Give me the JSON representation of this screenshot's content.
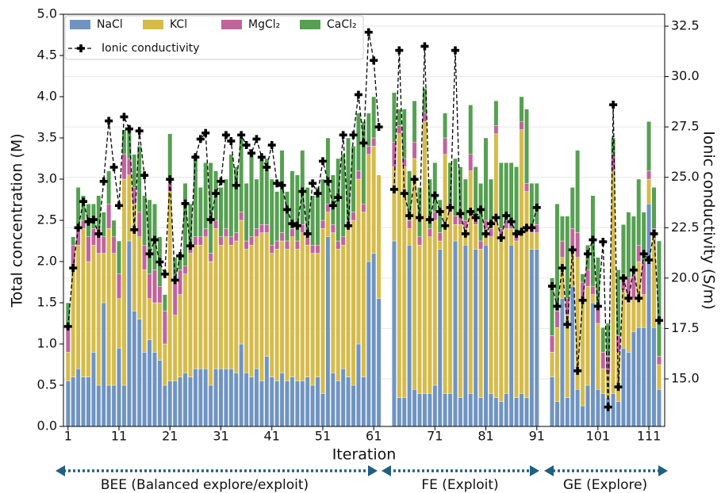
{
  "chart_data": {
    "type": "bar",
    "stacked": true,
    "x_label": "Iteration",
    "y_label": "Total concentration (M)",
    "y2_label": "Ionic conductivity (S/m)",
    "categories": [
      "1",
      null,
      null,
      null,
      null,
      null,
      null,
      null,
      null,
      null,
      "11",
      null,
      null,
      null,
      null,
      null,
      null,
      null,
      null,
      null,
      "21",
      null,
      null,
      null,
      null,
      null,
      null,
      null,
      null,
      null,
      "31",
      null,
      null,
      null,
      null,
      null,
      null,
      null,
      null,
      null,
      "41",
      null,
      null,
      null,
      null,
      null,
      null,
      null,
      null,
      null,
      "51",
      null,
      null,
      null,
      null,
      null,
      null,
      null,
      null,
      null,
      "61",
      null,
      null,
      null,
      null,
      null,
      null,
      null,
      null,
      null,
      null,
      null,
      "71",
      null,
      null,
      null,
      null,
      null,
      null,
      null,
      null,
      null,
      "81",
      null,
      null,
      null,
      null,
      null,
      null,
      null,
      null,
      null,
      "91",
      null,
      null,
      null,
      null,
      null,
      null,
      null,
      null,
      null,
      null,
      null,
      "101",
      null,
      null,
      null,
      null,
      null,
      null,
      null,
      null,
      null,
      "111",
      null,
      null
    ],
    "ylim": [
      0,
      5
    ],
    "yticks": [
      {
        "value": 0,
        "label": "0.0"
      },
      0.5,
      {
        "value": 1,
        "label": "1.0"
      },
      1.5,
      {
        "value": 2,
        "label": "2.0"
      },
      2.5,
      {
        "value": 3,
        "label": "3.0"
      },
      3.5,
      {
        "value": 4,
        "label": "4.0"
      },
      4.5,
      {
        "value": 5,
        "label": "5.0"
      }
    ],
    "y2lim": [
      12.64,
      33.09
    ],
    "y2ticks": [
      {
        "value": 15,
        "label": "15.0"
      },
      17.5,
      {
        "value": 20,
        "label": "20.0"
      },
      22.5,
      {
        "value": 25,
        "label": "25.0"
      },
      27.5,
      {
        "value": 30,
        "label": "30.0"
      },
      32.5
    ],
    "grid": true,
    "legend": "upper left",
    "series": [
      {
        "name": "NaCl",
        "color": "#6f94c2",
        "values": [
          0.55,
          0.6,
          0.7,
          0.6,
          0.6,
          0.9,
          0.5,
          1.5,
          0.5,
          0.5,
          0.95,
          0.5,
          2.25,
          1.4,
          1.3,
          0.9,
          1.05,
          0.9,
          0.8,
          0.5,
          0.55,
          0.55,
          0.6,
          0.65,
          0.6,
          0.7,
          0.7,
          0.7,
          0.5,
          0.7,
          0.7,
          0.7,
          0.7,
          0.65,
          1.0,
          0.65,
          0.6,
          0.7,
          0.55,
          0.85,
          0.6,
          0.55,
          0.65,
          0.55,
          0.6,
          0.55,
          0.55,
          0.6,
          0.5,
          0.6,
          0.4,
          2.3,
          0.65,
          0.55,
          0.7,
          0.6,
          0.5,
          1.0,
          0.6,
          2.0,
          2.1,
          1.55,
          null,
          null,
          2.25,
          0.35,
          0.35,
          2.2,
          0.45,
          0.4,
          0.4,
          0.4,
          0.5,
          2.15,
          0.4,
          0.4,
          2.25,
          0.35,
          2.2,
          0.4,
          2.15,
          0.35,
          2.2,
          0.4,
          0.35,
          0.3,
          0.4,
          2.2,
          0.35,
          0.4,
          0.35,
          2.15,
          2.15,
          null,
          null,
          0.6,
          0.3,
          1.55,
          0.35,
          1.7,
          0.45,
          0.25,
          0.5,
          1.5,
          0.45,
          0.4,
          0.35,
          0.4,
          0.3,
          0.95,
          0.9,
          1.15,
          1.2,
          1.2,
          2.7,
          1.2,
          0.45
        ]
      },
      {
        "name": "KCl",
        "color": "#d5bb4a",
        "values": [
          0.35,
          1.3,
          1.5,
          1.8,
          1.4,
          1.3,
          1.6,
          0.6,
          1.9,
          1.6,
          0.6,
          2.5,
          0.8,
          1.3,
          1.0,
          1.0,
          0.5,
          0.6,
          0.7,
          0.5,
          2.3,
          0.8,
          1.0,
          1.2,
          1.5,
          1.5,
          1.5,
          1.6,
          1.5,
          1.7,
          1.5,
          1.6,
          1.5,
          1.6,
          1.5,
          1.5,
          1.6,
          1.6,
          1.8,
          1.5,
          1.5,
          1.6,
          1.6,
          1.6,
          1.7,
          1.6,
          1.8,
          1.6,
          1.6,
          1.5,
          2.0,
          0.3,
          1.7,
          1.6,
          1.5,
          1.8,
          2.0,
          2.0,
          2.0,
          1.3,
          1.3,
          1.5,
          null,
          null,
          0.9,
          3.2,
          2.8,
          0.2,
          2.8,
          1.8,
          3.3,
          1.9,
          2.0,
          0.1,
          2.9,
          2.2,
          0.2,
          2.1,
          0.2,
          2.7,
          0.3,
          1.8,
          0.2,
          1.9,
          3.2,
          2.0,
          2.0,
          0.2,
          1.9,
          3.2,
          2.5,
          0.2,
          0.2,
          null,
          null,
          0.3,
          0.9,
          0.5,
          1.0,
          0.4,
          1.6,
          1.3,
          1.2,
          0.1,
          0.8,
          0.3,
          0.3,
          2.7,
          0.6,
          0.7,
          0.6,
          0.4,
          0.8,
          0.4,
          0.3,
          1.1,
          0.3
        ]
      },
      {
        "name": "MgCl₂",
        "color": "#c0649b",
        "values": [
          0.3,
          0.3,
          0.2,
          0.1,
          0.3,
          0.2,
          0.3,
          0.2,
          0.3,
          0.2,
          0.3,
          0.3,
          0.2,
          0.2,
          0.3,
          0.3,
          0.3,
          0.4,
          0.2,
          0.4,
          0.1,
          0.4,
          0.3,
          0.1,
          0.1,
          0.1,
          0.1,
          0.1,
          0.1,
          0.1,
          0.1,
          0.1,
          0.1,
          0.1,
          0.1,
          0.1,
          0.1,
          0.1,
          0.1,
          0.1,
          0.1,
          0.1,
          0.1,
          0.1,
          0.1,
          0.1,
          0.1,
          0.1,
          0.1,
          0.1,
          0.1,
          0.1,
          0.1,
          0.1,
          0.1,
          0.1,
          0.1,
          0.1,
          0.1,
          0.1,
          0.1,
          0,
          null,
          null,
          0.3,
          0.1,
          0.1,
          0.1,
          0.2,
          0.1,
          0.1,
          0.1,
          0.1,
          0.1,
          0.2,
          0.1,
          0.1,
          0.1,
          0.1,
          0.2,
          0.1,
          0.1,
          0.1,
          0.1,
          0.1,
          0.1,
          0.1,
          0.1,
          0.1,
          0.1,
          0.1,
          0.1,
          0.1,
          null,
          null,
          0.2,
          0.2,
          0.2,
          0.2,
          0.3,
          0.3,
          0.2,
          0.2,
          0.1,
          0.2,
          0.2,
          0.2,
          0.2,
          0.2,
          0.2,
          0.3,
          0.3,
          0.2,
          0.4,
          0.1,
          0.1,
          0.1
        ]
      },
      {
        "name": "CaCl₂",
        "color": "#56a052",
        "values": [
          0.3,
          0.1,
          0.5,
          0.3,
          0.4,
          0.3,
          0.4,
          0.3,
          0.4,
          0.2,
          0.4,
          0.3,
          0.4,
          0.4,
          0.8,
          0.6,
          0.9,
          0.8,
          0.6,
          0.2,
          0.6,
          0.3,
          0.2,
          1.0,
          0.5,
          1.0,
          0.6,
          0.8,
          1.1,
          0.6,
          0.6,
          0.6,
          1.0,
          0.8,
          0.9,
          0.7,
          1.0,
          0.6,
          0.8,
          0.8,
          0.8,
          0.6,
          1.0,
          0.6,
          0.7,
          0.8,
          0.9,
          0.6,
          0.6,
          0.7,
          0.5,
          0.8,
          0.6,
          1.0,
          1.0,
          1.0,
          0.8,
          0.7,
          1.0,
          0.4,
          0.5,
          0,
          null,
          null,
          0.6,
          0.2,
          0.6,
          0.6,
          0.5,
          0.6,
          0.3,
          0.6,
          0.6,
          0.4,
          0.3,
          0.5,
          0.7,
          0.6,
          0.5,
          0.6,
          0.6,
          0.7,
          1.0,
          0.6,
          0.3,
          0.8,
          0.7,
          0.7,
          0.8,
          0.3,
          0.9,
          0.5,
          0.5,
          null,
          null,
          0.7,
          1.3,
          0.3,
          1.0,
          0.5,
          1.0,
          0.1,
          0.3,
          1.1,
          0.6,
          0.3,
          0.4,
          0.2,
          0.8,
          0.6,
          0.8,
          0.7,
          0.8,
          0.6,
          0.6,
          0.5,
          1.4
        ]
      },
      {
        "name": "Ionic conductivity",
        "color": "#000000",
        "axis": "y2",
        "values": [
          17.6,
          20.5,
          22.5,
          23.8,
          22.8,
          22.9,
          22.2,
          24.8,
          27.8,
          25.5,
          23.6,
          28.0,
          27.4,
          22.4,
          27.3,
          25.1,
          21.2,
          21.9,
          20.8,
          20.2,
          24.9,
          19.9,
          21.1,
          23.7,
          21.6,
          26.0,
          26.9,
          27.2,
          22.9,
          24.2,
          24.8,
          27.1,
          26.8,
          24.6,
          27.1,
          26.6,
          26.2,
          26.9,
          26.0,
          25.5,
          26.6,
          24.7,
          24.6,
          23.4,
          22.7,
          22.6,
          24.3,
          22.2,
          24.7,
          24.2,
          25.8,
          24.8,
          23.6,
          24.0,
          27.1,
          22.6,
          27.1,
          29.1,
          26.7,
          32.2,
          30.8,
          27.5,
          null,
          null,
          24.4,
          31.3,
          24.2,
          23.1,
          24.9,
          23.0,
          31.5,
          22.9,
          24.1,
          23.3,
          22.6,
          23.5,
          31.3,
          23.2,
          22.2,
          23.3,
          23.0,
          23.4,
          22.2,
          22.7,
          23.0,
          22.0,
          23.1,
          22.8,
          22.2,
          22.3,
          22.5,
          22.5,
          23.5,
          null,
          null,
          19.6,
          18.6,
          20.5,
          17.7,
          21.4,
          15.4,
          18.9,
          21.2,
          21.9,
          18.6,
          21.8,
          13.6,
          28.6,
          14.6,
          20.0,
          19.0,
          20.4,
          19.0,
          21.2,
          20.9,
          22.2,
          17.9
        ]
      }
    ],
    "annotations": [
      "BEE (Balanced explore/exploit)",
      "FE (Exploit)",
      "GE (Explore)"
    ]
  }
}
